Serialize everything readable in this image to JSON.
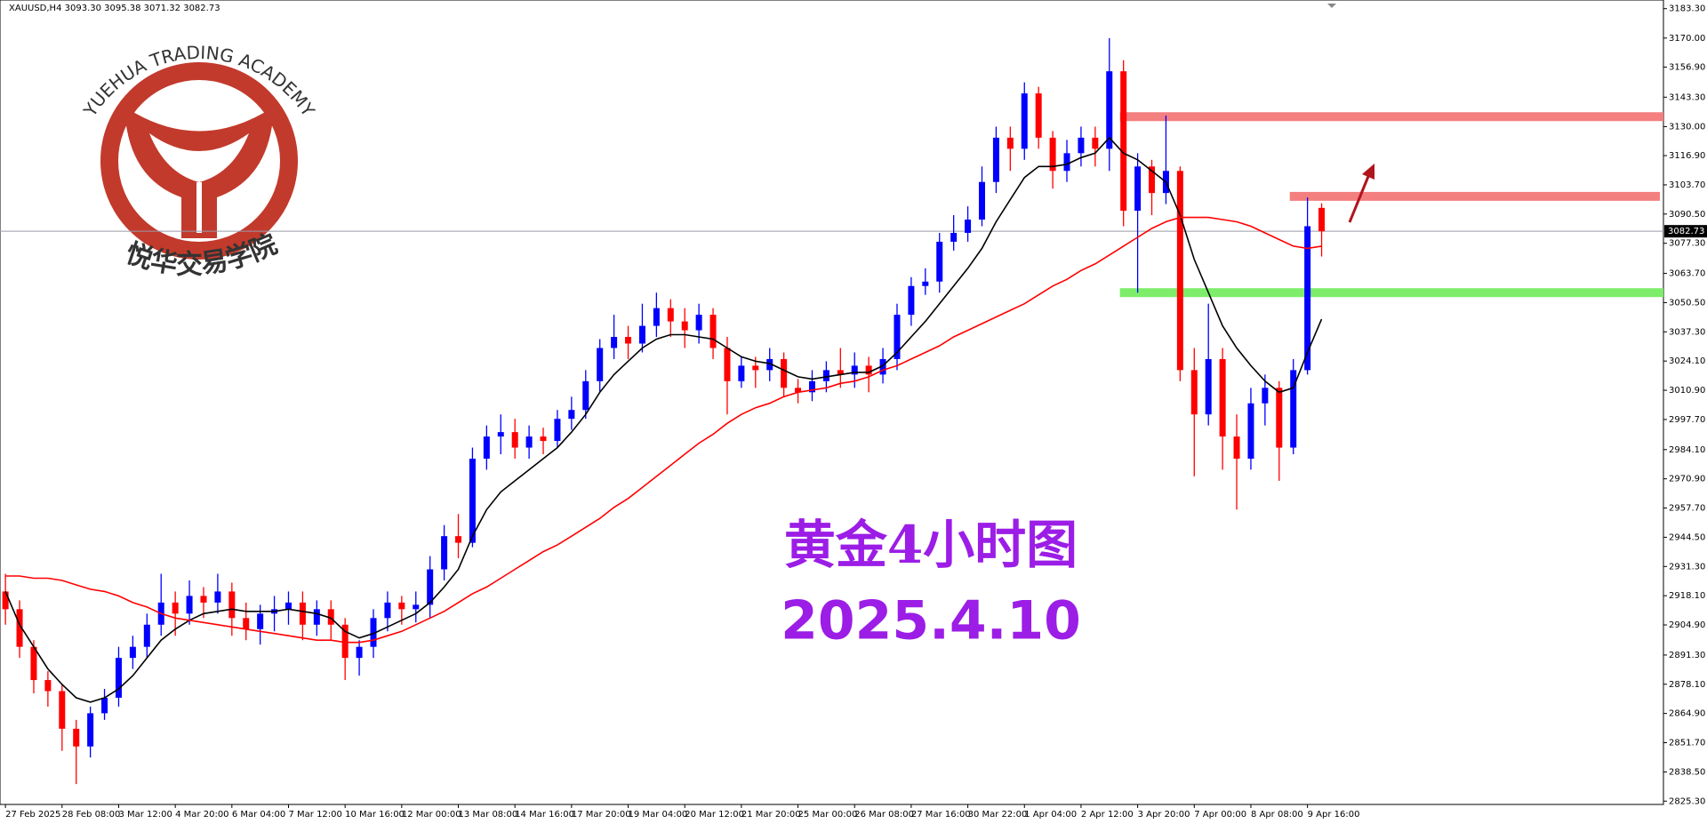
{
  "chart_data": {
    "type": "candlestick",
    "header": "XAUUSD,H4  3093.30 3095.38 3071.32 3082.73",
    "categories": [
      "27 Feb 2025",
      null,
      null,
      null,
      "28 Feb 08:00",
      null,
      null,
      null,
      "3 Mar 12:00",
      null,
      null,
      null,
      "4 Mar 20:00",
      null,
      null,
      null,
      "6 Mar 04:00",
      null,
      null,
      null,
      "7 Mar 12:00",
      null,
      null,
      null,
      "10 Mar 16:00",
      null,
      null,
      null,
      "12 Mar 00:00",
      null,
      null,
      null,
      "13 Mar 08:00",
      null,
      null,
      null,
      "14 Mar 16:00",
      null,
      null,
      null,
      "17 Mar 20:00",
      null,
      null,
      null,
      "19 Mar 04:00",
      null,
      null,
      null,
      "20 Mar 12:00",
      null,
      null,
      null,
      "21 Mar 20:00",
      null,
      null,
      null,
      "25 Mar 00:00",
      null,
      null,
      null,
      "26 Mar 08:00",
      null,
      null,
      null,
      "27 Mar 16:00",
      null,
      null,
      null,
      "30 Mar 22:00",
      null,
      null,
      null,
      "1 Apr 04:00",
      null,
      null,
      null,
      "2 Apr 12:00",
      null,
      null,
      null,
      "3 Apr 20:00",
      null,
      null,
      null,
      "7 Apr 00:00",
      null,
      null,
      null,
      "8 Apr 08:00",
      null,
      null,
      null,
      "9 Apr 16:00",
      null
    ],
    "open": [
      2920,
      2912,
      2895,
      2880,
      2875,
      2858,
      2850,
      2865,
      2872,
      2890,
      2895,
      2905,
      2915,
      2910,
      2918,
      2915,
      2920,
      2908,
      2903,
      2910,
      2912,
      2915,
      2905,
      2912,
      2905,
      2890,
      2895,
      2908,
      2915,
      2912,
      2914,
      2930,
      2945,
      2942,
      2980,
      2990,
      2992,
      2985,
      2990,
      2988,
      2998,
      3002,
      3015,
      3030,
      3035,
      3032,
      3040,
      3048,
      3042,
      3038,
      3045,
      3030,
      3015,
      3022,
      3020,
      3025,
      3012,
      3010,
      3015,
      3020,
      3018,
      3022,
      3018,
      3025,
      3045,
      3058,
      3060,
      3078,
      3082,
      3088,
      3105,
      3125,
      3120,
      3145,
      3125,
      3110,
      3118,
      3125,
      3120,
      3155,
      3092,
      3112,
      3100,
      3110,
      3020,
      3000,
      3025,
      2990,
      2980,
      3005,
      3012,
      2985,
      3020,
      3093.3
    ],
    "high": [
      2928,
      2916,
      2898,
      2884,
      2878,
      2862,
      2868,
      2876,
      2895,
      2900,
      2910,
      2928,
      2920,
      2925,
      2922,
      2928,
      2924,
      2915,
      2914,
      2918,
      2920,
      2920,
      2916,
      2916,
      2908,
      2898,
      2912,
      2920,
      2918,
      2920,
      2936,
      2950,
      2955,
      2985,
      2995,
      3000,
      2998,
      2995,
      2994,
      3002,
      3008,
      3020,
      3034,
      3045,
      3040,
      3050,
      3055,
      3052,
      3048,
      3050,
      3048,
      3035,
      3026,
      3026,
      3030,
      3028,
      3016,
      3020,
      3024,
      3030,
      3028,
      3026,
      3030,
      3050,
      3062,
      3066,
      3082,
      3090,
      3094,
      3112,
      3130,
      3130,
      3150,
      3148,
      3128,
      3124,
      3130,
      3130,
      3170,
      3160,
      3118,
      3115,
      3135,
      3112,
      3030,
      3050,
      3030,
      3000,
      3012,
      3018,
      3015,
      3025,
      3098,
      3095.38
    ],
    "low": [
      2905,
      2890,
      2874,
      2868,
      2848,
      2833,
      2845,
      2862,
      2868,
      2885,
      2890,
      2900,
      2900,
      2905,
      2908,
      2910,
      2900,
      2898,
      2896,
      2902,
      2905,
      2898,
      2900,
      2898,
      2880,
      2882,
      2890,
      2902,
      2905,
      2906,
      2908,
      2925,
      2935,
      2940,
      2975,
      2982,
      2980,
      2980,
      2982,
      2985,
      2993,
      2998,
      3010,
      3025,
      3025,
      3028,
      3035,
      3035,
      3030,
      3032,
      3025,
      3000,
      3012,
      3012,
      3015,
      3008,
      3005,
      3006,
      3010,
      3012,
      3012,
      3010,
      3014,
      3020,
      3040,
      3054,
      3055,
      3074,
      3078,
      3085,
      3100,
      3110,
      3115,
      3120,
      3102,
      3105,
      3112,
      3112,
      3110,
      3085,
      3055,
      3090,
      3095,
      3015,
      2972,
      2995,
      2975,
      2957,
      2975,
      2995,
      2970,
      2982,
      3018,
      3071.32
    ],
    "close": [
      2912,
      2895,
      2880,
      2875,
      2858,
      2850,
      2865,
      2872,
      2890,
      2895,
      2905,
      2915,
      2910,
      2918,
      2915,
      2920,
      2908,
      2903,
      2910,
      2912,
      2915,
      2905,
      2912,
      2905,
      2890,
      2895,
      2908,
      2915,
      2912,
      2914,
      2930,
      2945,
      2942,
      2980,
      2990,
      2992,
      2985,
      2990,
      2988,
      2998,
      3002,
      3015,
      3030,
      3035,
      3032,
      3040,
      3048,
      3042,
      3038,
      3045,
      3030,
      3015,
      3022,
      3020,
      3025,
      3012,
      3010,
      3015,
      3020,
      3018,
      3022,
      3018,
      3025,
      3045,
      3058,
      3060,
      3078,
      3082,
      3088,
      3105,
      3125,
      3120,
      3145,
      3125,
      3110,
      3118,
      3125,
      3120,
      3155,
      3092,
      3112,
      3100,
      3110,
      3020,
      3000,
      3025,
      2990,
      2980,
      3005,
      3012,
      2985,
      3020,
      3085,
      3082.73
    ],
    "up_color": "#0000ff",
    "down_color": "#ff0000",
    "lines": [
      {
        "color": "#000000",
        "values": [
          2920,
          2905,
          2895,
          2885,
          2878,
          2872,
          2870,
          2872,
          2876,
          2882,
          2890,
          2898,
          2903,
          2907,
          2910,
          2911,
          2912,
          2911,
          2911,
          2911,
          2912,
          2911,
          2910,
          2908,
          2902,
          2899,
          2901,
          2904,
          2907,
          2910,
          2915,
          2922,
          2930,
          2945,
          2957,
          2965,
          2970,
          2975,
          2980,
          2985,
          2992,
          3000,
          3010,
          3018,
          3024,
          3030,
          3034,
          3036,
          3036,
          3035,
          3034,
          3030,
          3026,
          3024,
          3023,
          3020,
          3017,
          3016,
          3017,
          3018,
          3019,
          3019,
          3022,
          3028,
          3035,
          3042,
          3050,
          3058,
          3066,
          3075,
          3087,
          3097,
          3107,
          3112,
          3112,
          3113,
          3116,
          3118,
          3125,
          3118,
          3115,
          3110,
          3105,
          3090,
          3070,
          3055,
          3040,
          3030,
          3022,
          3015,
          3010,
          3012,
          3028,
          3043
        ]
      },
      {
        "color": "#ff0000",
        "values": [
          2927,
          2927,
          2926,
          2926,
          2925,
          2923,
          2921,
          2920,
          2918,
          2915,
          2913,
          2910,
          2908,
          2907,
          2906,
          2905,
          2904,
          2903,
          2902,
          2901,
          2900,
          2899,
          2898,
          2898,
          2897,
          2897,
          2898,
          2900,
          2902,
          2905,
          2908,
          2911,
          2915,
          2919,
          2922,
          2926,
          2930,
          2934,
          2938,
          2941,
          2945,
          2949,
          2953,
          2958,
          2962,
          2967,
          2972,
          2977,
          2982,
          2987,
          2991,
          2996,
          3000,
          3003,
          3005,
          3008,
          3010,
          3011,
          3012,
          3014,
          3015,
          3017,
          3020,
          3022,
          3025,
          3028,
          3031,
          3035,
          3038,
          3041,
          3044,
          3047,
          3050,
          3054,
          3058,
          3061,
          3065,
          3068,
          3072,
          3076,
          3080,
          3084,
          3087,
          3089,
          3089,
          3089,
          3088,
          3087,
          3085,
          3082,
          3079,
          3076,
          3075,
          3076
        ]
      }
    ],
    "levels": [
      {
        "value": 3134.5,
        "color": "#f47f7f"
      },
      {
        "value": 3098.5,
        "color": "#f47f7f"
      },
      {
        "value": 3055,
        "color": "#7ded6a"
      }
    ],
    "last_price": {
      "value": 3082.73,
      "label": "3082.73"
    },
    "ylim": [
      2823.8,
      3187.2
    ],
    "yticks": [
      {
        "value": 3183.3,
        "label": "3183.30"
      },
      {
        "value": 3170,
        "label": "3170.00"
      },
      {
        "value": 3156.9,
        "label": "3156.90"
      },
      {
        "value": 3143.3,
        "label": "3143.30"
      },
      {
        "value": 3130,
        "label": "3130.00"
      },
      {
        "value": 3116.9,
        "label": "3116.90"
      },
      {
        "value": 3103.7,
        "label": "3103.70"
      },
      {
        "value": 3090.5,
        "label": "3090.50"
      },
      {
        "value": 3077.3,
        "label": "3077.30"
      },
      {
        "value": 3063.7,
        "label": "3063.70"
      },
      {
        "value": 3050.5,
        "label": "3050.50"
      },
      {
        "value": 3037.3,
        "label": "3037.30"
      },
      {
        "value": 3024.1,
        "label": "3024.10"
      },
      {
        "value": 3010.9,
        "label": "3010.90"
      },
      {
        "value": 2997.7,
        "label": "2997.70"
      },
      {
        "value": 2984.1,
        "label": "2984.10"
      },
      {
        "value": 2970.9,
        "label": "2970.90"
      },
      {
        "value": 2957.7,
        "label": "2957.70"
      },
      {
        "value": 2944.5,
        "label": "2944.50"
      },
      {
        "value": 2931.3,
        "label": "2931.30"
      },
      {
        "value": 2918.1,
        "label": "2918.10"
      },
      {
        "value": 2904.9,
        "label": "2904.90"
      },
      {
        "value": 2891.3,
        "label": "2891.30"
      },
      {
        "value": 2878.1,
        "label": "2878.10"
      },
      {
        "value": 2864.9,
        "label": "2864.90"
      },
      {
        "value": 2851.7,
        "label": "2851.70"
      },
      {
        "value": 2838.5,
        "label": "2838.50"
      },
      {
        "value": 2825.3,
        "label": "2825.30"
      }
    ],
    "annotations": [
      "黄金4小时图",
      "2025.4.10"
    ]
  },
  "logo": {
    "text_en": "YUEHUA TRADING ACADEMY",
    "text_cn": "悦华交易学院"
  }
}
